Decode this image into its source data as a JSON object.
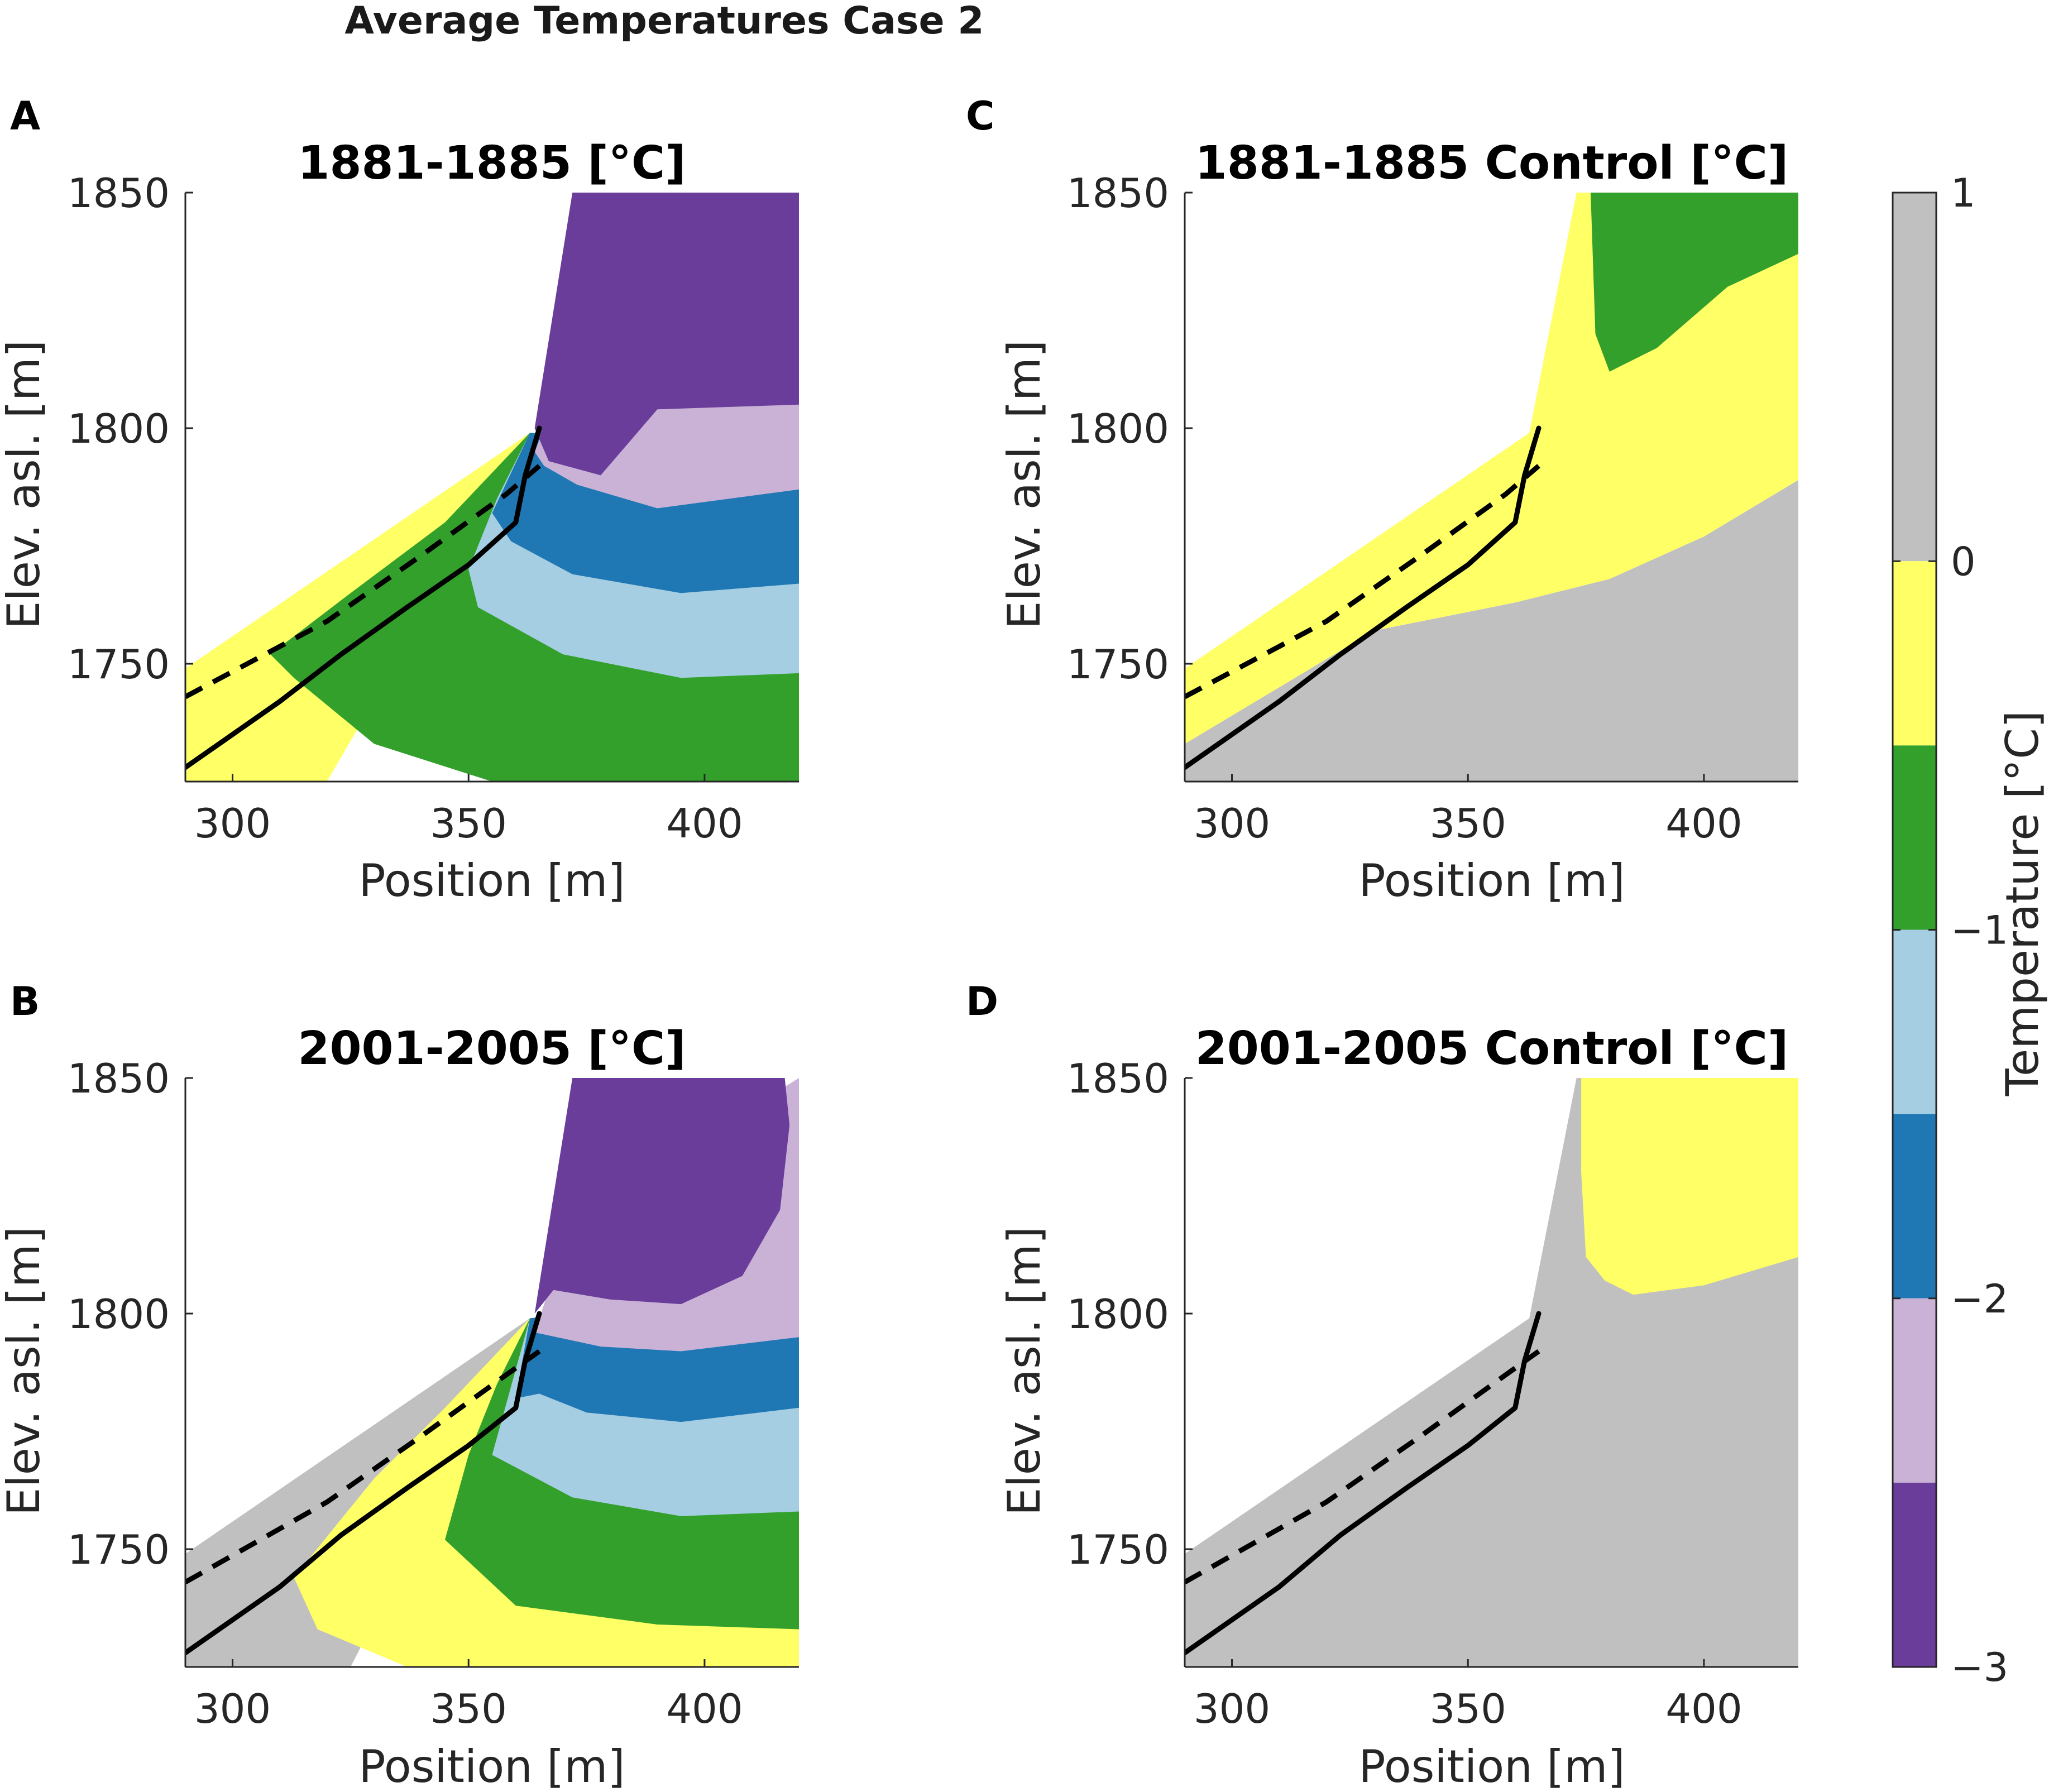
{
  "figure_title": "Average Temperatures Case 2",
  "colors": {
    "gt0": "#c0c0c0",
    "m05_0": "#ffff66",
    "m1_m05": "#33a02c",
    "m15_m1": "#a6cee3",
    "m2_m15": "#1f78b4",
    "m25_m2": "#cab2d6",
    "lt_m25": "#6a3d9a"
  },
  "chart_data": [
    {
      "id": "A",
      "letter": "A",
      "type": "contour",
      "title": "1881-1885 [°C]",
      "xlabel": "Position [m]",
      "ylabel": "Elev. asl. [m]",
      "xlim": [
        290,
        420
      ],
      "ylim": [
        1725,
        1850
      ],
      "xticks": [
        300,
        350,
        400
      ],
      "yticks": [
        1750,
        1800,
        1850
      ],
      "regions": [
        {
          "level": "m05_0",
          "polygon": [
            [
              290,
              1749
            ],
            [
              363,
              1799
            ],
            [
              320,
              1725
            ],
            [
              290,
              1725
            ]
          ]
        },
        {
          "level": "m1_m05",
          "polygon": [
            [
              308,
              1752
            ],
            [
              325,
              1765
            ],
            [
              345,
              1780
            ],
            [
              363,
              1799
            ],
            [
              375,
              1780
            ],
            [
              420,
              1780
            ],
            [
              420,
              1725
            ],
            [
              355,
              1725
            ],
            [
              330,
              1733
            ],
            [
              313,
              1747
            ]
          ]
        },
        {
          "level": "m15_m1",
          "polygon": [
            [
              350,
              1770
            ],
            [
              356,
              1785
            ],
            [
              363,
              1799
            ],
            [
              420,
              1795
            ],
            [
              420,
              1748
            ],
            [
              395,
              1747
            ],
            [
              370,
              1752
            ],
            [
              352,
              1762
            ]
          ]
        },
        {
          "level": "m2_m15",
          "polygon": [
            [
              355,
              1782
            ],
            [
              363,
              1799
            ],
            [
              420,
              1797
            ],
            [
              420,
              1767
            ],
            [
              395,
              1765
            ],
            [
              372,
              1769
            ],
            [
              359,
              1776
            ]
          ]
        },
        {
          "level": "m25_m2",
          "polygon": [
            [
              364,
              1795
            ],
            [
              370,
              1810
            ],
            [
              420,
              1810
            ],
            [
              420,
              1787
            ],
            [
              390,
              1783
            ],
            [
              373,
              1788
            ],
            [
              366,
              1792
            ]
          ]
        },
        {
          "level": "lt_m25",
          "polygon": [
            [
              364,
              1800
            ],
            [
              372,
              1850
            ],
            [
              420,
              1850
            ],
            [
              420,
              1805
            ],
            [
              390,
              1804
            ],
            [
              378,
              1790
            ],
            [
              367,
              1793
            ]
          ]
        }
      ],
      "lines": [
        {
          "style": "solid",
          "points": [
            [
              290,
              1728
            ],
            [
              310,
              1742
            ],
            [
              323,
              1752
            ],
            [
              337,
              1762
            ],
            [
              350,
              1771
            ],
            [
              360,
              1780
            ],
            [
              362,
              1790
            ],
            [
              365,
              1800
            ]
          ]
        },
        {
          "style": "dashed",
          "points": [
            [
              290,
              1743
            ],
            [
              320,
              1759
            ],
            [
              340,
              1773
            ],
            [
              358,
              1786
            ],
            [
              365,
              1792
            ]
          ]
        }
      ]
    },
    {
      "id": "B",
      "letter": "B",
      "type": "contour",
      "title": "2001-2005 [°C]",
      "xlabel": "Position [m]",
      "ylabel": "Elev. asl. [m]",
      "xlim": [
        290,
        420
      ],
      "ylim": [
        1725,
        1850
      ],
      "xticks": [
        300,
        350,
        400
      ],
      "yticks": [
        1750,
        1800,
        1850
      ],
      "regions": [
        {
          "level": "gt0",
          "polygon": [
            [
              290,
              1749
            ],
            [
              363,
              1799
            ],
            [
              325,
              1725
            ],
            [
              290,
              1725
            ]
          ]
        },
        {
          "level": "m05_0",
          "polygon": [
            [
              313,
              1744
            ],
            [
              330,
              1765
            ],
            [
              345,
              1780
            ],
            [
              363,
              1799
            ],
            [
              375,
              1780
            ],
            [
              420,
              1775
            ],
            [
              420,
              1725
            ],
            [
              337,
              1725
            ],
            [
              318,
              1733
            ]
          ]
        },
        {
          "level": "m1_m05",
          "polygon": [
            [
              345,
              1752
            ],
            [
              350,
              1770
            ],
            [
              356,
              1785
            ],
            [
              363,
              1799
            ],
            [
              420,
              1800
            ],
            [
              420,
              1733
            ],
            [
              390,
              1734
            ],
            [
              360,
              1738
            ]
          ]
        },
        {
          "level": "m15_m1",
          "polygon": [
            [
              355,
              1770
            ],
            [
              363,
              1799
            ],
            [
              420,
              1800
            ],
            [
              420,
              1758
            ],
            [
              395,
              1757
            ],
            [
              372,
              1761
            ]
          ]
        },
        {
          "level": "m2_m15",
          "polygon": [
            [
              360,
              1782
            ],
            [
              363,
              1799
            ],
            [
              420,
              1805
            ],
            [
              420,
              1780
            ],
            [
              395,
              1777
            ],
            [
              375,
              1779
            ],
            [
              365,
              1783
            ]
          ]
        },
        {
          "level": "m25_m2",
          "polygon": [
            [
              364,
              1796
            ],
            [
              372,
              1820
            ],
            [
              420,
              1850
            ],
            [
              420,
              1795
            ],
            [
              395,
              1792
            ],
            [
              378,
              1793
            ]
          ]
        },
        {
          "level": "lt_m25",
          "polygon": [
            [
              364,
              1800
            ],
            [
              372,
              1850
            ],
            [
              417,
              1850
            ],
            [
              418,
              1840
            ],
            [
              416,
              1822
            ],
            [
              408,
              1808
            ],
            [
              395,
              1802
            ],
            [
              380,
              1803
            ],
            [
              368,
              1805
            ]
          ]
        }
      ],
      "lines": [
        {
          "style": "solid",
          "points": [
            [
              290,
              1728
            ],
            [
              310,
              1742
            ],
            [
              323,
              1753
            ],
            [
              337,
              1763
            ],
            [
              350,
              1772
            ],
            [
              360,
              1780
            ],
            [
              362,
              1790
            ],
            [
              365,
              1800
            ]
          ]
        },
        {
          "style": "dashed",
          "points": [
            [
              290,
              1743
            ],
            [
              320,
              1760
            ],
            [
              340,
              1774
            ],
            [
              358,
              1787
            ],
            [
              365,
              1792
            ]
          ]
        }
      ]
    },
    {
      "id": "C",
      "letter": "C",
      "type": "contour",
      "title": "1881-1885 Control [°C]",
      "xlabel": "Position [m]",
      "ylabel": "Elev. asl. [m]",
      "xlim": [
        290,
        420
      ],
      "ylim": [
        1725,
        1850
      ],
      "xticks": [
        300,
        350,
        400
      ],
      "yticks": [
        1750,
        1800,
        1850
      ],
      "regions": [
        {
          "level": "gt0",
          "polygon": [
            [
              290,
              1725
            ],
            [
              290,
              1733
            ],
            [
              310,
              1745
            ],
            [
              330,
              1757
            ],
            [
              360,
              1763
            ],
            [
              380,
              1768
            ],
            [
              400,
              1777
            ],
            [
              420,
              1789
            ],
            [
              420,
              1725
            ]
          ]
        },
        {
          "level": "m05_0",
          "polygon": [
            [
              290,
              1733
            ],
            [
              290,
              1749
            ],
            [
              363,
              1799
            ],
            [
              373,
              1850
            ],
            [
              420,
              1850
            ],
            [
              420,
              1789
            ],
            [
              400,
              1777
            ],
            [
              380,
              1768
            ],
            [
              360,
              1763
            ],
            [
              330,
              1757
            ],
            [
              310,
              1745
            ]
          ]
        },
        {
          "level": "m1_m05",
          "polygon": [
            [
              376,
              1850
            ],
            [
              377,
              1820
            ],
            [
              380,
              1812
            ],
            [
              390,
              1817
            ],
            [
              405,
              1830
            ],
            [
              420,
              1837
            ],
            [
              420,
              1850
            ]
          ]
        }
      ],
      "lines": [
        {
          "style": "solid",
          "points": [
            [
              290,
              1728
            ],
            [
              310,
              1742
            ],
            [
              323,
              1752
            ],
            [
              337,
              1762
            ],
            [
              350,
              1771
            ],
            [
              360,
              1780
            ],
            [
              362,
              1790
            ],
            [
              365,
              1800
            ]
          ]
        },
        {
          "style": "dashed",
          "points": [
            [
              290,
              1743
            ],
            [
              320,
              1759
            ],
            [
              340,
              1773
            ],
            [
              358,
              1786
            ],
            [
              365,
              1792
            ]
          ]
        }
      ]
    },
    {
      "id": "D",
      "letter": "D",
      "type": "contour",
      "title": "2001-2005 Control [°C]",
      "xlabel": "Position [m]",
      "ylabel": "Elev. asl. [m]",
      "xlim": [
        290,
        420
      ],
      "ylim": [
        1725,
        1850
      ],
      "xticks": [
        300,
        350,
        400
      ],
      "yticks": [
        1750,
        1800,
        1850
      ],
      "regions": [
        {
          "level": "gt0",
          "polygon": [
            [
              290,
              1725
            ],
            [
              290,
              1749
            ],
            [
              363,
              1799
            ],
            [
              373,
              1850
            ],
            [
              420,
              1850
            ],
            [
              420,
              1725
            ]
          ]
        },
        {
          "level": "m05_0",
          "polygon": [
            [
              374,
              1850
            ],
            [
              374,
              1830
            ],
            [
              375,
              1812
            ],
            [
              379,
              1807
            ],
            [
              385,
              1804
            ],
            [
              400,
              1806
            ],
            [
              420,
              1812
            ],
            [
              420,
              1850
            ]
          ]
        }
      ],
      "lines": [
        {
          "style": "solid",
          "points": [
            [
              290,
              1728
            ],
            [
              310,
              1742
            ],
            [
              323,
              1753
            ],
            [
              337,
              1763
            ],
            [
              350,
              1772
            ],
            [
              360,
              1780
            ],
            [
              362,
              1790
            ],
            [
              365,
              1800
            ]
          ]
        },
        {
          "style": "dashed",
          "points": [
            [
              290,
              1743
            ],
            [
              320,
              1760
            ],
            [
              340,
              1774
            ],
            [
              358,
              1787
            ],
            [
              365,
              1792
            ]
          ]
        }
      ]
    }
  ],
  "colorbar": {
    "label": "Temperature [°C]",
    "range": [
      -3,
      1
    ],
    "ticks": [
      1,
      0,
      -1,
      -2,
      -3
    ],
    "tick_labels": [
      "1",
      "0",
      "−1",
      "−2",
      "−3"
    ],
    "segments": [
      {
        "from": 1,
        "to": 0,
        "level": "gt0"
      },
      {
        "from": 0,
        "to": -0.5,
        "level": "m05_0"
      },
      {
        "from": -0.5,
        "to": -1,
        "level": "m1_m05"
      },
      {
        "from": -1,
        "to": -1.5,
        "level": "m15_m1"
      },
      {
        "from": -1.5,
        "to": -2,
        "level": "m2_m15"
      },
      {
        "from": -2,
        "to": -2.5,
        "level": "m25_m2"
      },
      {
        "from": -2.5,
        "to": -3,
        "level": "lt_m25"
      }
    ]
  }
}
